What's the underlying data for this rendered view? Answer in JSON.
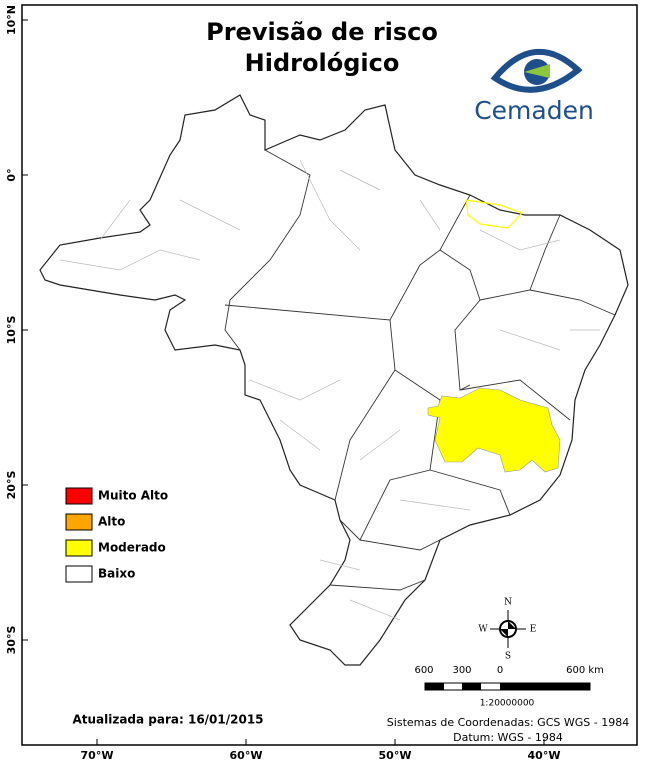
{
  "title": [
    "Previsão de risco",
    "Hidrológico"
  ],
  "logo": "Cemaden",
  "legend": [
    {
      "label": "Muito Alto",
      "color": "#ff0000"
    },
    {
      "label": "Alto",
      "color": "#ffa500"
    },
    {
      "label": "Moderado",
      "color": "#ffff00"
    },
    {
      "label": "Baixo",
      "color": "#ffffff"
    }
  ],
  "latitude_labels": [
    "10°N",
    "0°",
    "10°S",
    "20°S",
    "30°S"
  ],
  "longitude_labels": [
    "70°W",
    "60°W",
    "50°W",
    "40°W"
  ],
  "compass": {
    "n": "N",
    "e": "E",
    "s": "S",
    "w": "W"
  },
  "scale_bar": {
    "labels": [
      "600",
      "300",
      "0",
      "600 km"
    ],
    "ratio": "1:20000000"
  },
  "updated": "Atualizada para: 16/01/2015",
  "coordinate_system": "Sistemas de Coordenadas: GCS WGS - 1984",
  "datum": "Datum: WGS - 1984"
}
